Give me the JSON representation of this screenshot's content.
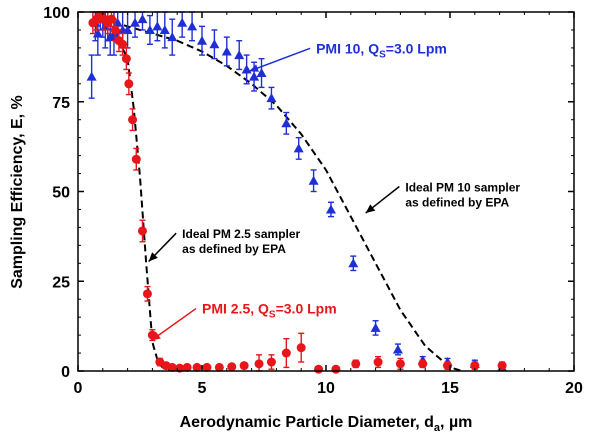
{
  "chart_data": {
    "type": "scatter",
    "xlabel": "Aerodynamic Particle Diameter, d",
    "xlabel_sub": "a",
    "xlabel_unit": ", µm",
    "ylabel": "Sampling Efficiency, E, %",
    "xlim": [
      0,
      20
    ],
    "ylim": [
      0,
      100
    ],
    "xticks": [
      0,
      5,
      10,
      15,
      20
    ],
    "yticks": [
      0,
      25,
      50,
      75,
      100
    ],
    "grid": false,
    "series": [
      {
        "name": "PMI 10, QS=3.0 Lpm",
        "color": "#1f2fd6",
        "marker": "triangle",
        "points": [
          [
            0.55,
            82,
            6
          ],
          [
            0.7,
            97,
            5
          ],
          [
            0.8,
            94,
            6
          ],
          [
            0.9,
            99,
            4
          ],
          [
            1.0,
            98,
            5
          ],
          [
            1.1,
            96,
            6
          ],
          [
            1.2,
            97,
            5
          ],
          [
            1.3,
            93,
            5
          ],
          [
            1.45,
            94,
            6
          ],
          [
            1.6,
            97,
            4
          ],
          [
            1.8,
            95,
            5
          ],
          [
            2.0,
            95,
            5
          ],
          [
            2.3,
            97,
            4
          ],
          [
            2.6,
            98,
            3
          ],
          [
            2.9,
            95,
            4
          ],
          [
            3.2,
            96,
            4
          ],
          [
            3.5,
            95,
            5
          ],
          [
            3.8,
            93,
            5
          ],
          [
            4.2,
            97,
            4
          ],
          [
            4.6,
            96,
            4
          ],
          [
            5.0,
            92,
            4
          ],
          [
            5.5,
            91,
            4
          ],
          [
            6.0,
            89,
            4
          ],
          [
            6.5,
            88,
            4
          ],
          [
            6.8,
            84,
            4
          ],
          [
            7.1,
            82,
            4
          ],
          [
            7.4,
            83,
            4
          ],
          [
            7.8,
            76,
            3
          ],
          [
            8.4,
            69,
            3
          ],
          [
            8.9,
            62,
            3
          ],
          [
            9.5,
            53,
            3
          ],
          [
            10.2,
            45,
            2
          ],
          [
            11.1,
            30,
            2
          ],
          [
            12.0,
            12,
            2
          ],
          [
            12.9,
            6,
            1.5
          ],
          [
            13.9,
            3,
            1
          ],
          [
            14.9,
            2.5,
            1
          ],
          [
            16.0,
            2,
            1
          ],
          [
            17.1,
            1,
            0.5
          ]
        ]
      },
      {
        "name": "PMI 2.5, QS=3.0 Lpm",
        "color": "#e8151b",
        "marker": "circle",
        "points": [
          [
            0.6,
            97,
            3
          ],
          [
            0.75,
            98,
            3
          ],
          [
            0.9,
            99,
            2
          ],
          [
            1.05,
            98,
            3
          ],
          [
            1.2,
            97,
            3
          ],
          [
            1.35,
            98,
            2
          ],
          [
            1.5,
            95,
            3
          ],
          [
            1.65,
            92,
            3
          ],
          [
            1.8,
            91,
            3
          ],
          [
            1.95,
            87,
            3
          ],
          [
            2.05,
            80,
            3
          ],
          [
            2.2,
            70,
            3
          ],
          [
            2.35,
            59,
            3
          ],
          [
            2.6,
            39,
            3
          ],
          [
            2.8,
            21.5,
            2
          ],
          [
            3.0,
            10,
            1.5
          ],
          [
            3.3,
            2.5,
            1
          ],
          [
            3.55,
            1.5,
            0.8
          ],
          [
            3.8,
            1,
            0.6
          ],
          [
            4.1,
            0.8,
            0.5
          ],
          [
            4.4,
            1,
            0.5
          ],
          [
            4.8,
            1,
            0.5
          ],
          [
            5.2,
            1,
            0.5
          ],
          [
            5.7,
            1,
            0.5
          ],
          [
            6.2,
            1.2,
            0.6
          ],
          [
            6.7,
            1.5,
            0.8
          ],
          [
            7.3,
            2,
            2.5
          ],
          [
            7.8,
            2.5,
            2
          ],
          [
            8.4,
            5,
            4
          ],
          [
            9.0,
            6.5,
            4
          ],
          [
            9.7,
            0.5,
            0.4
          ],
          [
            10.4,
            0.5,
            0.4
          ],
          [
            11.2,
            2,
            1
          ],
          [
            12.1,
            2.5,
            1.5
          ],
          [
            13.0,
            2,
            1.5
          ],
          [
            13.9,
            2,
            1
          ],
          [
            14.9,
            1.5,
            1
          ],
          [
            16.0,
            1.5,
            1
          ],
          [
            17.1,
            1.5,
            1
          ]
        ]
      }
    ],
    "reference_curves": [
      {
        "name": "Ideal PM 10 sampler as defined by EPA",
        "style": "dashed",
        "color": "#000000",
        "x": [
          1,
          2,
          3,
          4,
          5,
          6,
          7,
          8,
          9,
          10,
          11,
          12,
          13,
          14,
          15,
          15.5
        ],
        "y": [
          98,
          96,
          94,
          92,
          89,
          85,
          80,
          74,
          66,
          56,
          43,
          30,
          17,
          7,
          1,
          0
        ]
      },
      {
        "name": "Ideal PM 2.5 sampler as defined by EPA",
        "style": "dashed",
        "color": "#000000",
        "x": [
          1,
          1.5,
          2,
          2.25,
          2.5,
          2.75,
          3,
          3.25,
          3.5,
          4
        ],
        "y": [
          97,
          94,
          87,
          73,
          54,
          30,
          8,
          2,
          0.5,
          0
        ]
      }
    ],
    "annotations": [
      {
        "id": "pmi10",
        "parts": [
          "PMI 10, Q",
          "S",
          "=3.0 Lpm"
        ],
        "color": "#1f2fd6",
        "xy": [
          6.9,
          83.5
        ],
        "text_xy": [
          9.6,
          88.5
        ]
      },
      {
        "id": "ideal10",
        "lines": [
          "Ideal PM 10 sampler",
          "as defined by EPA"
        ],
        "color": "#000000",
        "xy": [
          11.6,
          44
        ],
        "text_xy": [
          13.2,
          50
        ]
      },
      {
        "id": "ideal25",
        "lines": [
          "Ideal PM 2.5 sampler",
          "as defined by EPA"
        ],
        "color": "#000000",
        "xy": [
          2.85,
          30.5
        ],
        "text_xy": [
          4.2,
          37
        ]
      },
      {
        "id": "pmi25",
        "parts": [
          "PMI 2.5, Q",
          "S",
          "=3.0 Lpm"
        ],
        "color": "#e8151b",
        "xy": [
          2.95,
          8.5
        ],
        "text_xy": [
          5.0,
          16
        ]
      }
    ]
  }
}
